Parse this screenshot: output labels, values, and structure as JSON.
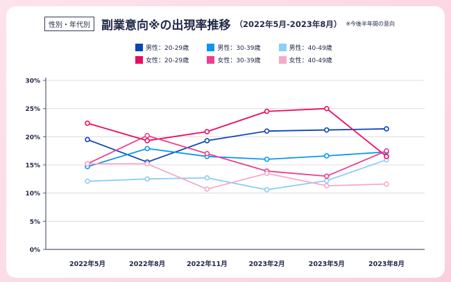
{
  "header": {
    "tag": "性別・年代別",
    "title": "副業意向※の出現率推移",
    "period": "（2022年5月-2023年8月）",
    "note": "※今後半年間の意向"
  },
  "chart_data": {
    "type": "line",
    "categories": [
      "2022年5月",
      "2022年8月",
      "2022年11月",
      "2023年2月",
      "2023年5月",
      "2023年8月"
    ],
    "ylim": [
      0,
      30
    ],
    "yticks": [
      0,
      5,
      10,
      15,
      20,
      25,
      30
    ],
    "ytick_labels": [
      "0%",
      "5%",
      "10%",
      "15%",
      "20%",
      "25%",
      "30%"
    ],
    "grid": true,
    "legend_position": "top-center",
    "series": [
      {
        "name": "男性：20-29歳",
        "color": "#0b44b8",
        "values": [
          19.5,
          15.5,
          19.3,
          21.0,
          21.2,
          21.4
        ]
      },
      {
        "name": "男性：30-39歳",
        "color": "#0a96f2",
        "values": [
          14.7,
          17.9,
          16.5,
          16.0,
          16.6,
          17.3
        ]
      },
      {
        "name": "男性：40-49歳",
        "color": "#8ccdfa",
        "values": [
          12.1,
          12.5,
          12.7,
          10.6,
          12.2,
          15.9
        ]
      },
      {
        "name": "女性：20-29歳",
        "color": "#ea0c5e",
        "values": [
          22.4,
          19.3,
          20.9,
          24.5,
          25.0,
          16.5
        ]
      },
      {
        "name": "女性：30-39歳",
        "color": "#ec3f8b",
        "values": [
          15.2,
          20.2,
          17.0,
          13.9,
          13.0,
          17.5
        ]
      },
      {
        "name": "女性：40-49歳",
        "color": "#f6a9c9",
        "values": [
          15.2,
          15.2,
          10.7,
          13.5,
          11.3,
          11.6
        ]
      }
    ]
  }
}
